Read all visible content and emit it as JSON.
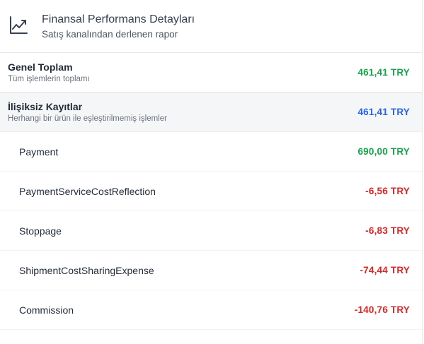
{
  "header": {
    "icon": "trending-up-icon",
    "title": "Finansal Performans Detayları",
    "subtitle": "Satış kanalından derlenen rapor"
  },
  "summary": {
    "total": {
      "title": "Genel Toplam",
      "subtitle": "Tüm işlemlerin toplamı",
      "amount": "461,41 TRY",
      "color": "#16a34a"
    },
    "unmatched": {
      "title": "İlişiksiz Kayıtlar",
      "subtitle": "Herhangi bir ürün ile eşleştirilmemiş işlemler",
      "amount": "461,41 TRY",
      "color": "#2563eb"
    }
  },
  "items": [
    {
      "label": "Payment",
      "amount": "690,00 TRY",
      "sign": "positive"
    },
    {
      "label": "PaymentServiceCostReflection",
      "amount": "-6,56 TRY",
      "sign": "negative"
    },
    {
      "label": "Stoppage",
      "amount": "-6,83 TRY",
      "sign": "negative"
    },
    {
      "label": "ShipmentCostSharingExpense",
      "amount": "-74,44 TRY",
      "sign": "negative"
    },
    {
      "label": "Commission",
      "amount": "-140,76 TRY",
      "sign": "negative"
    }
  ],
  "colors": {
    "positive": "#16a34a",
    "negative": "#dc2626",
    "neutral": "#2563eb"
  }
}
